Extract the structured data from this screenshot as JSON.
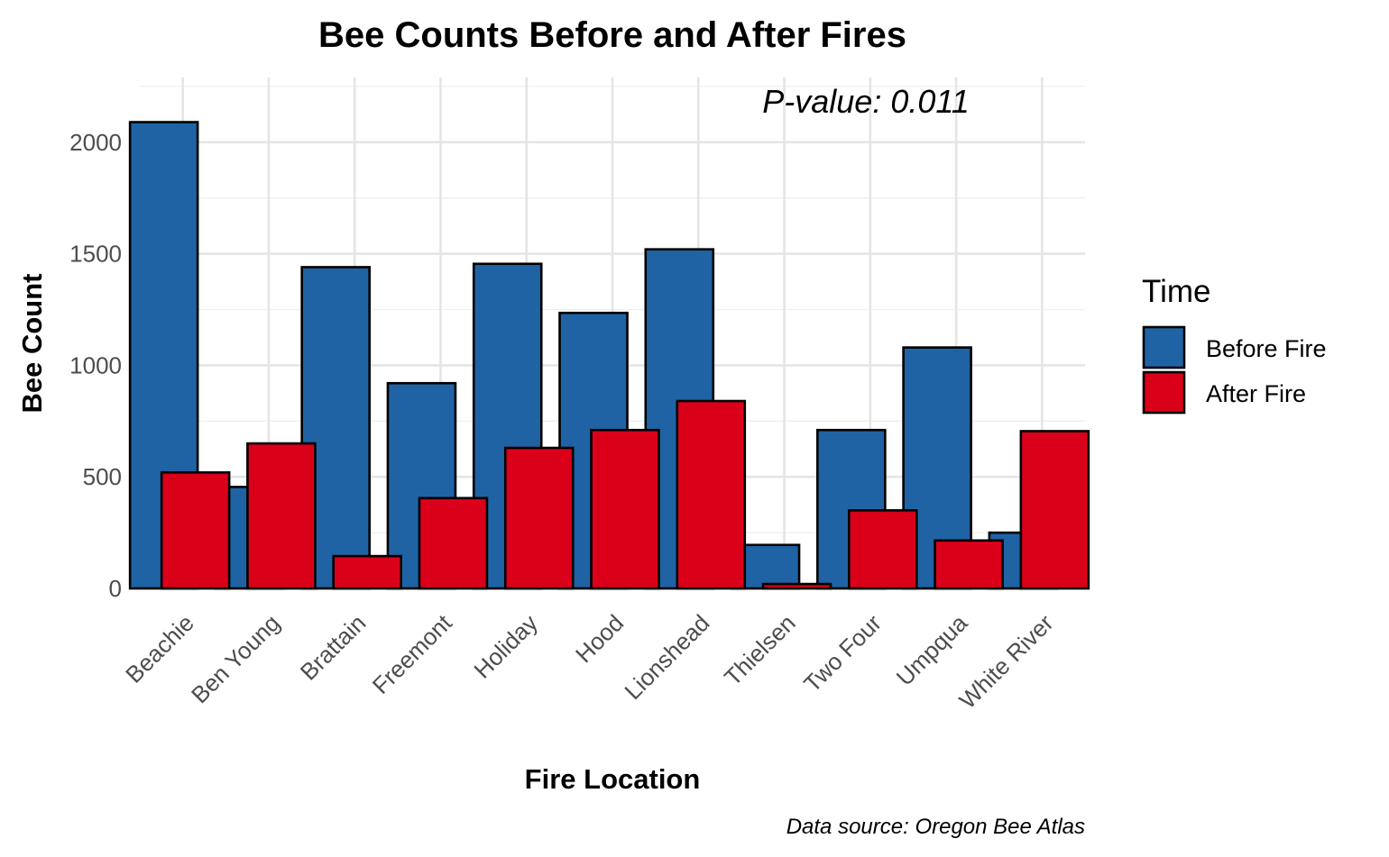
{
  "chart_data": {
    "type": "bar",
    "title": "Bee Counts Before and After Fires",
    "xlabel": "Fire Location",
    "ylabel": "Bee Count",
    "annotation": "P-value: 0.011",
    "caption": "Data source: Oregon Bee Atlas",
    "categories": [
      "Beachie",
      "Ben Young",
      "Brattain",
      "Freemont",
      "Holiday",
      "Hood",
      "Lionshead",
      "Thielsen",
      "Two Four",
      "Umpqua",
      "White River"
    ],
    "series": [
      {
        "name": "Before Fire",
        "color": "#1f63a4",
        "values": [
          2090,
          455,
          1440,
          920,
          1455,
          1235,
          1520,
          195,
          710,
          1080,
          250
        ]
      },
      {
        "name": "After Fire",
        "color": "#db001a",
        "values": [
          520,
          650,
          145,
          405,
          630,
          710,
          840,
          20,
          350,
          215,
          705
        ]
      }
    ],
    "ylim": [
      0,
      2250
    ],
    "yticks": [
      0,
      500,
      1000,
      1500,
      2000
    ],
    "grid": true,
    "legend": {
      "title": "Time",
      "position": "right"
    }
  }
}
